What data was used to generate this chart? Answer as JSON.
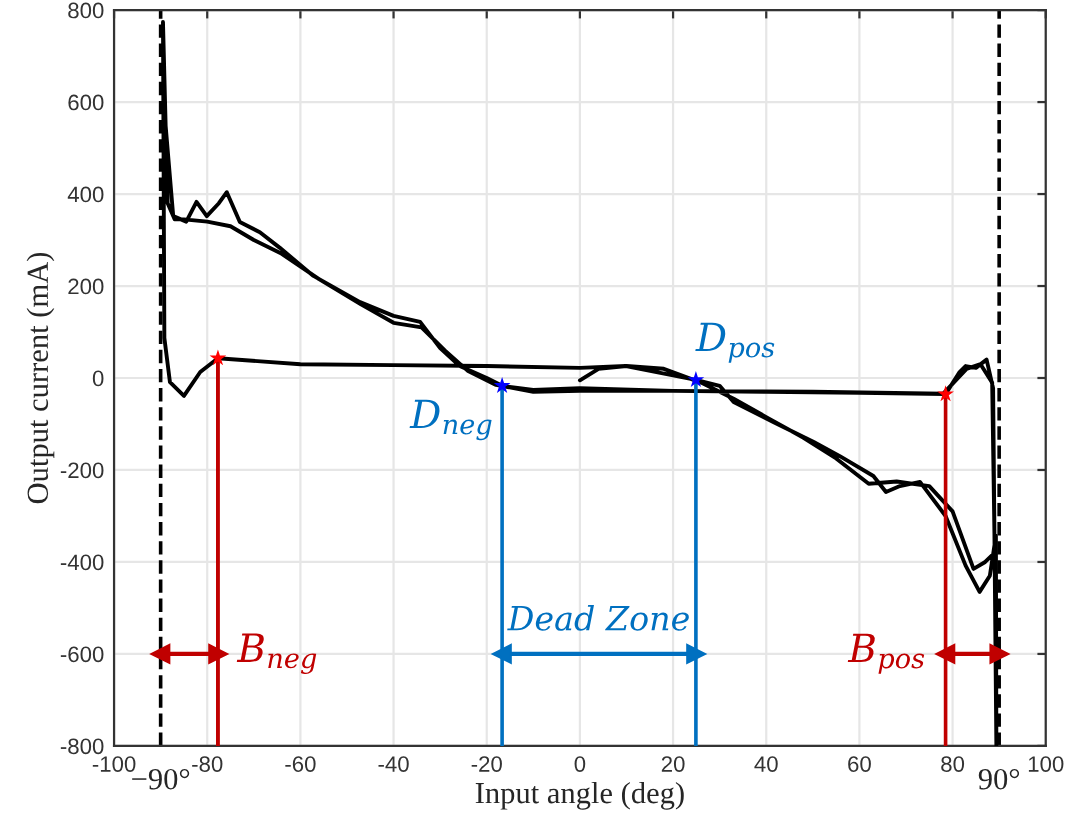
{
  "chart_data": {
    "type": "line",
    "xlabel": "Input angle (deg)",
    "ylabel": "Output current (mA)",
    "xlim": [
      -100,
      100
    ],
    "xticks": [
      -100,
      -80,
      -60,
      -40,
      -20,
      0,
      20,
      40,
      60,
      80,
      100
    ],
    "ylim": [
      -800,
      800
    ],
    "yticks": [
      -800,
      -600,
      -400,
      -200,
      0,
      200,
      400,
      600,
      800
    ],
    "grid": true,
    "series": [
      {
        "color": "#000000",
        "x": [
          -89.5,
          -89,
          -87.3,
          -84.5,
          -82.3,
          -80.1,
          -77.5,
          -75.8,
          -73,
          -68.7,
          -64.4,
          -57.2,
          -47.2,
          -40,
          -34.3,
          -30,
          -25.8,
          -20,
          -16.7,
          -10,
          0,
          20,
          40,
          60,
          78.5,
          81.5,
          82.8,
          85,
          87.3,
          88.7,
          89.4,
          89.3,
          88,
          85.8,
          82.8,
          78.5,
          73,
          68.7,
          65.7,
          63,
          55.8,
          50.2,
          41.6,
          33,
          30,
          24.9,
          9.9,
          0,
          -20,
          -40,
          -60,
          -77.7,
          -81.5,
          -85,
          -88,
          -89.2,
          -89.5,
          -88.5,
          -87,
          -85,
          -80,
          -75,
          -70,
          -64,
          -56,
          -47,
          -40,
          -34,
          -29,
          -24,
          -18,
          -10,
          0,
          20,
          50,
          78,
          83,
          86,
          88.5,
          89.4,
          89,
          87,
          84.5,
          80,
          75,
          68,
          62,
          55,
          48,
          40,
          33,
          26,
          18,
          10,
          4,
          0
        ],
        "values": [
          774,
          557,
          352,
          340,
          383,
          352,
          380,
          404,
          339,
          317,
          283,
          222,
          165,
          135,
          122,
          65,
          26,
          0,
          -17,
          -26,
          -22,
          -28,
          -30,
          -32,
          -35,
          13,
          26,
          22,
          40,
          -22,
          -800,
          -343,
          -430,
          -465,
          -408,
          -300,
          -226,
          -235,
          -248,
          -213,
          -170,
          -139,
          -96,
          -52,
          -17,
          -4,
          26,
          22,
          26,
          28,
          30,
          43,
          13,
          -39,
          -9,
          87,
          774,
          380,
          345,
          345,
          340,
          330,
          300,
          270,
          215,
          160,
          120,
          110,
          60,
          15,
          -15,
          -30,
          -28,
          -28,
          -30,
          -34,
          20,
          30,
          -10,
          -620,
          -380,
          -400,
          -415,
          -290,
          -235,
          -225,
          -230,
          -175,
          -130,
          -85,
          -45,
          -10,
          20,
          26,
          20,
          -5
        ]
      },
      {
        "type": "line",
        "color": "#c00000",
        "x": [
          -77.7,
          -77.7
        ],
        "values": [
          -800,
          43
        ]
      },
      {
        "type": "line",
        "color": "#c00000",
        "x": [
          78.5,
          78.5
        ],
        "values": [
          -800,
          -35
        ]
      },
      {
        "type": "line",
        "color": "#0070c0",
        "x": [
          -16.7,
          -16.7
        ],
        "values": [
          -800,
          -17
        ]
      },
      {
        "type": "line",
        "color": "#0070c0",
        "x": [
          24.9,
          24.9
        ],
        "values": [
          -800,
          -4
        ]
      },
      {
        "type": "scatter",
        "marker": "star",
        "color": "#ff0000",
        "x": [
          -77.7,
          78.5
        ],
        "values": [
          43,
          -35
        ]
      },
      {
        "type": "scatter",
        "marker": "star",
        "color": "#0000ff",
        "x": [
          -16.7,
          24.9
        ],
        "values": [
          -17,
          -4
        ]
      },
      {
        "type": "line",
        "marker": "triangle",
        "color": "#c00000",
        "x": [
          -90,
          -77.7
        ],
        "values": [
          -600,
          -600
        ]
      },
      {
        "type": "line",
        "marker": "triangle",
        "color": "#0070c0",
        "x": [
          -16.7,
          24.9
        ],
        "values": [
          -600,
          -600
        ]
      },
      {
        "type": "line",
        "marker": "triangle",
        "color": "#c00000",
        "x": [
          78.5,
          90
        ],
        "values": [
          -600,
          -600
        ]
      }
    ],
    "ref_lines": [
      {
        "axis": "x",
        "value": -90,
        "label": "−90°",
        "color": "#000000",
        "line_style": "dashed"
      },
      {
        "axis": "x",
        "value": 90,
        "label": "90°",
        "color": "#000000",
        "line_style": "dashed"
      }
    ],
    "annotations": [
      {
        "text": "B$_{neg}$",
        "x": -77.7,
        "y": -600
      },
      {
        "text": "D$_{neg}$",
        "x": -16.7,
        "y": -17
      },
      {
        "text": "D$_{pos}$",
        "x": 24.9,
        "y": -4
      },
      "Dead Zone",
      {
        "text": "B$_{pos}$",
        "x": 78.5,
        "y": -600
      }
    ]
  }
}
